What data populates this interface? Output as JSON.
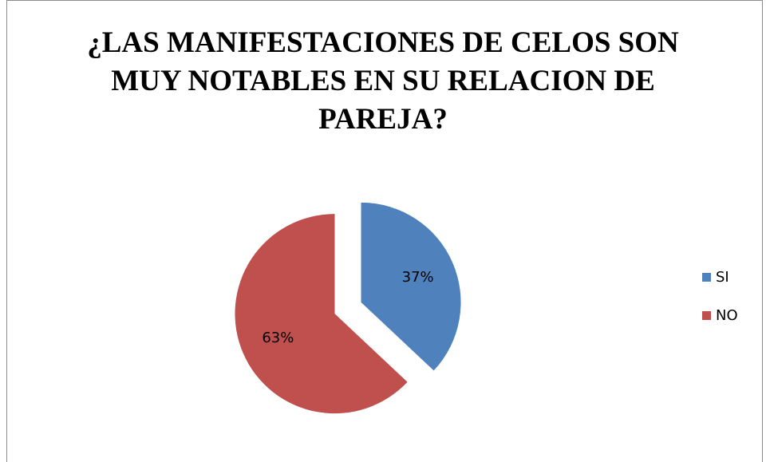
{
  "chart_data": {
    "type": "pie",
    "title_lines": [
      "¿LAS MANIFESTACIONES DE CELOS SON",
      "MUY NOTABLES EN SU RELACION DE",
      "PAREJA?"
    ],
    "categories": [
      "SI",
      "NO"
    ],
    "values": [
      37,
      63
    ],
    "labels": [
      "37%",
      "63%"
    ],
    "colors": [
      "#4f81bd",
      "#c0504d"
    ],
    "exploded": true,
    "legend_position": "right"
  }
}
